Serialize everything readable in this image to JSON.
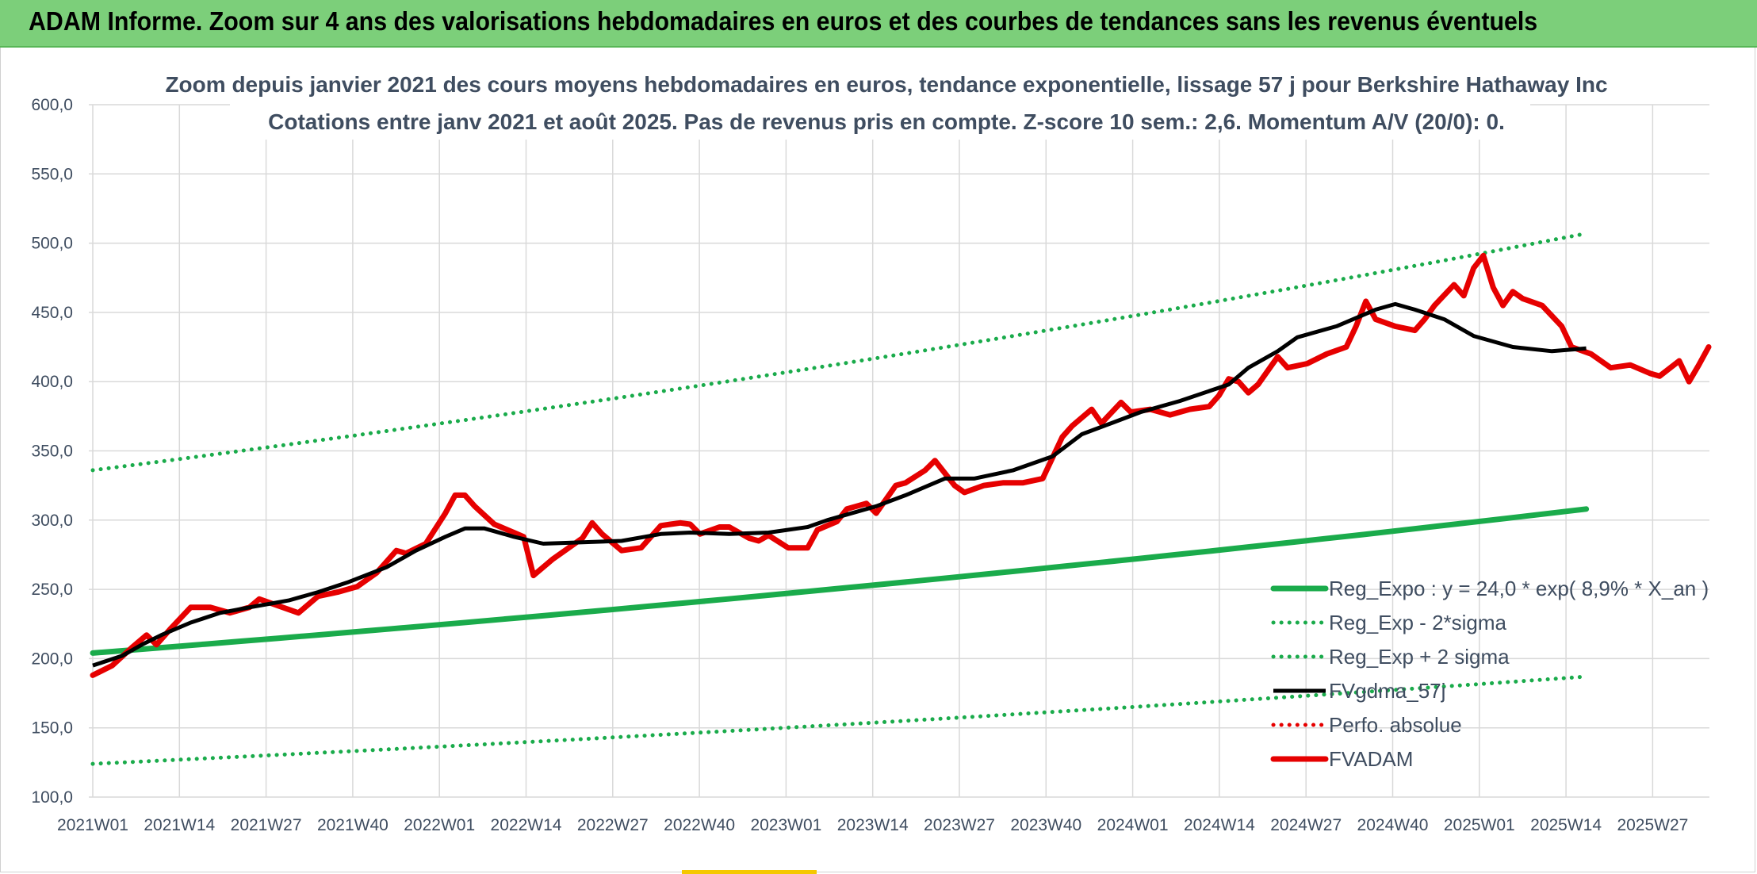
{
  "header": {
    "title": "ADAM Informe. Zoom sur 4 ans des valorisations hebdomadaires en euros et des courbes de tendances sans les revenus éventuels"
  },
  "chart_data": {
    "type": "line",
    "title": "Zoom depuis janvier 2021 des cours moyens hebdomadaires en euros, tendance exponentielle, lissage 57 j pour Berkshire Hathaway Inc",
    "subtitle": "Cotations entre janv 2021 et août 2025. Pas de revenus pris en compte. Z-score 10 sem.: 2,6. Momentum A/V (20/0): 0.",
    "xlabel": "",
    "ylabel": "",
    "ylim": [
      100,
      600
    ],
    "yticks": [
      "100,0",
      "150,0",
      "200,0",
      "250,0",
      "300,0",
      "350,0",
      "400,0",
      "450,0",
      "500,0",
      "550,0",
      "600,0"
    ],
    "xticks": [
      "2021W01",
      "2021W14",
      "2021W27",
      "2021W40",
      "2022W01",
      "2022W14",
      "2022W27",
      "2022W40",
      "2023W01",
      "2023W14",
      "2023W27",
      "2023W40",
      "2024W01",
      "2024W14",
      "2024W27",
      "2024W40",
      "2025W01",
      "2025W14",
      "2025W27"
    ],
    "x_week_range": [
      0,
      243
    ],
    "grid": true,
    "legend_position": "bottom-right",
    "series": [
      {
        "name": "Reg_Expo : y = 24,0 * exp( 8,9% *  X_an )",
        "color": "#1aab4b",
        "style": "solid-thick",
        "start": 204,
        "end": 308
      },
      {
        "name": "Reg_Exp - 2*sigma",
        "color": "#1aab4b",
        "style": "dotted",
        "start": 124,
        "end": 187
      },
      {
        "name": "Reg_Exp + 2 sigma",
        "color": "#1aab4b",
        "style": "dotted",
        "start": 336,
        "end": 507
      },
      {
        "name": "FVgdma_57j",
        "color": "#000000",
        "style": "solid",
        "points": [
          [
            0,
            195
          ],
          [
            6,
            202
          ],
          [
            10,
            210
          ],
          [
            14,
            217
          ],
          [
            20,
            226
          ],
          [
            26,
            233
          ],
          [
            32,
            237
          ],
          [
            40,
            242
          ],
          [
            46,
            248
          ],
          [
            52,
            255
          ],
          [
            60,
            266
          ],
          [
            66,
            278
          ],
          [
            72,
            288
          ],
          [
            76,
            294
          ],
          [
            80,
            294
          ],
          [
            86,
            288
          ],
          [
            92,
            283
          ],
          [
            100,
            284
          ],
          [
            108,
            285
          ],
          [
            116,
            290
          ],
          [
            122,
            291
          ],
          [
            130,
            290
          ],
          [
            138,
            291
          ],
          [
            146,
            295
          ],
          [
            150,
            300
          ],
          [
            160,
            310
          ],
          [
            166,
            318
          ],
          [
            174,
            330
          ],
          [
            180,
            330
          ],
          [
            188,
            336
          ],
          [
            196,
            346
          ],
          [
            202,
            362
          ],
          [
            208,
            370
          ],
          [
            214,
            378
          ],
          [
            222,
            386
          ],
          [
            232,
            398
          ],
          [
            236,
            410
          ],
          [
            242,
            422
          ],
          [
            246,
            432
          ],
          [
            254,
            440
          ],
          [
            262,
            452
          ],
          [
            266,
            456
          ],
          [
            270,
            452
          ],
          [
            276,
            445
          ],
          [
            282,
            433
          ],
          [
            290,
            425
          ],
          [
            298,
            422
          ],
          [
            305,
            424
          ]
        ]
      },
      {
        "name": "Perfo. absolue",
        "color": "#e60000",
        "style": "dotted",
        "points": []
      },
      {
        "name": "FVADAM",
        "color": "#e60000",
        "style": "solid-thick",
        "points": [
          [
            0,
            188
          ],
          [
            4,
            195
          ],
          [
            8,
            208
          ],
          [
            11,
            217
          ],
          [
            13,
            210
          ],
          [
            16,
            222
          ],
          [
            20,
            237
          ],
          [
            24,
            237
          ],
          [
            28,
            233
          ],
          [
            32,
            237
          ],
          [
            34,
            243
          ],
          [
            38,
            238
          ],
          [
            42,
            233
          ],
          [
            46,
            245
          ],
          [
            50,
            248
          ],
          [
            54,
            252
          ],
          [
            58,
            262
          ],
          [
            62,
            278
          ],
          [
            64,
            276
          ],
          [
            68,
            283
          ],
          [
            72,
            305
          ],
          [
            74,
            318
          ],
          [
            76,
            318
          ],
          [
            78,
            310
          ],
          [
            82,
            297
          ],
          [
            86,
            291
          ],
          [
            88,
            288
          ],
          [
            90,
            260
          ],
          [
            94,
            272
          ],
          [
            96,
            277
          ],
          [
            100,
            287
          ],
          [
            102,
            298
          ],
          [
            104,
            290
          ],
          [
            108,
            278
          ],
          [
            112,
            280
          ],
          [
            116,
            296
          ],
          [
            118,
            297
          ],
          [
            120,
            298
          ],
          [
            122,
            297
          ],
          [
            124,
            290
          ],
          [
            128,
            295
          ],
          [
            130,
            295
          ],
          [
            134,
            287
          ],
          [
            136,
            285
          ],
          [
            138,
            289
          ],
          [
            142,
            280
          ],
          [
            146,
            280
          ],
          [
            148,
            293
          ],
          [
            152,
            299
          ],
          [
            154,
            308
          ],
          [
            158,
            312
          ],
          [
            160,
            305
          ],
          [
            164,
            325
          ],
          [
            166,
            327
          ],
          [
            170,
            336
          ],
          [
            172,
            343
          ],
          [
            176,
            325
          ],
          [
            178,
            320
          ],
          [
            182,
            325
          ],
          [
            186,
            327
          ],
          [
            190,
            327
          ],
          [
            194,
            330
          ],
          [
            198,
            360
          ],
          [
            200,
            368
          ],
          [
            204,
            380
          ],
          [
            206,
            370
          ],
          [
            210,
            385
          ],
          [
            212,
            378
          ],
          [
            216,
            380
          ],
          [
            220,
            376
          ],
          [
            224,
            380
          ],
          [
            228,
            382
          ],
          [
            230,
            390
          ],
          [
            232,
            402
          ],
          [
            234,
            400
          ],
          [
            236,
            392
          ],
          [
            238,
            398
          ],
          [
            242,
            418
          ],
          [
            244,
            410
          ],
          [
            248,
            413
          ],
          [
            252,
            420
          ],
          [
            256,
            425
          ],
          [
            258,
            440
          ],
          [
            260,
            458
          ],
          [
            262,
            445
          ],
          [
            266,
            440
          ],
          [
            270,
            437
          ],
          [
            272,
            445
          ],
          [
            274,
            455
          ],
          [
            278,
            470
          ],
          [
            280,
            462
          ],
          [
            282,
            482
          ],
          [
            284,
            491
          ],
          [
            286,
            468
          ],
          [
            288,
            455
          ],
          [
            290,
            465
          ],
          [
            292,
            460
          ],
          [
            296,
            455
          ],
          [
            300,
            440
          ],
          [
            302,
            425
          ],
          [
            306,
            420
          ],
          [
            310,
            410
          ],
          [
            314,
            412
          ],
          [
            318,
            406
          ],
          [
            320,
            404
          ],
          [
            324,
            415
          ],
          [
            326,
            400
          ],
          [
            328,
            412
          ],
          [
            330,
            425
          ]
        ]
      }
    ]
  }
}
